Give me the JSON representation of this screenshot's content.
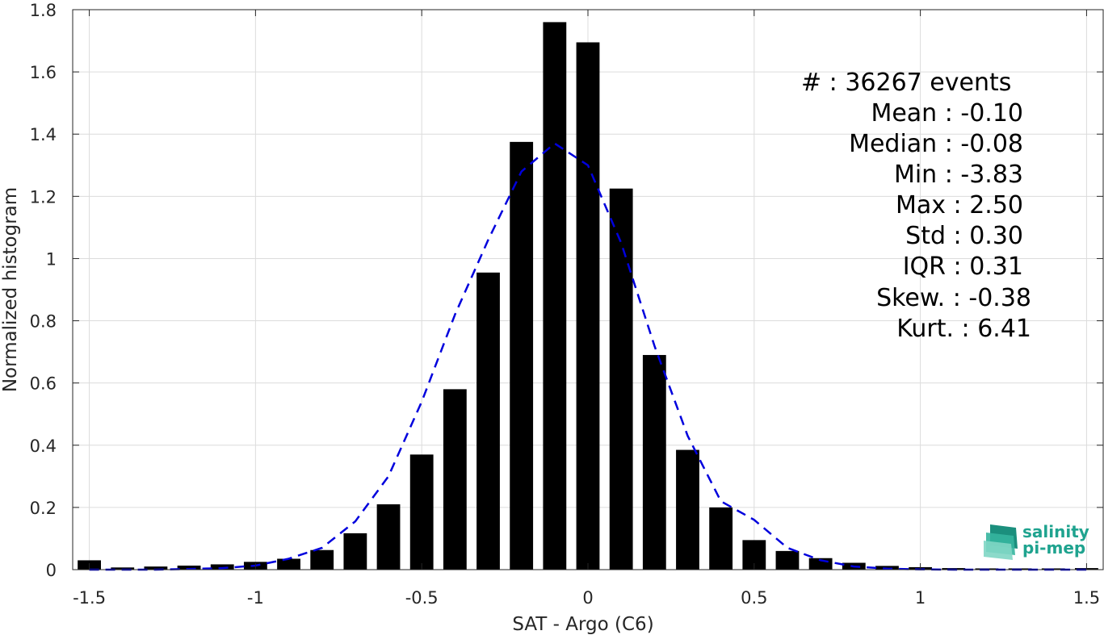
{
  "chart_data": {
    "type": "bar",
    "title": "",
    "xlabel": "SAT - Argo (C6)",
    "ylabel": "Normalized histogram",
    "xlim": [
      -1.55,
      1.55
    ],
    "ylim": [
      0,
      1.8
    ],
    "grid": true,
    "x_ticks": [
      -1.5,
      -1,
      -0.5,
      0,
      0.5,
      1,
      1.5
    ],
    "x_tick_labels": [
      "-1.5",
      "-1",
      "-0.5",
      "0",
      "0.5",
      "1",
      "1.5"
    ],
    "y_ticks": [
      0,
      0.2,
      0.4,
      0.6,
      0.8,
      1,
      1.2,
      1.4,
      1.6,
      1.8
    ],
    "y_tick_labels": [
      "0",
      "0.2",
      "0.4",
      "0.6",
      "0.8",
      "1",
      "1.2",
      "1.4",
      "1.6",
      "1.8"
    ],
    "bars": {
      "color": "#000000",
      "bin_width": 0.1,
      "x": [
        -1.5,
        -1.4,
        -1.3,
        -1.2,
        -1.1,
        -1.0,
        -0.9,
        -0.8,
        -0.7,
        -0.6,
        -0.5,
        -0.4,
        -0.3,
        -0.2,
        -0.1,
        0.0,
        0.1,
        0.2,
        0.3,
        0.4,
        0.5,
        0.6,
        0.7,
        0.8,
        0.9,
        1.0,
        1.1,
        1.2,
        1.3,
        1.4,
        1.5
      ],
      "values": [
        0.03,
        0.007,
        0.01,
        0.013,
        0.017,
        0.025,
        0.035,
        0.063,
        0.117,
        0.21,
        0.37,
        0.58,
        0.955,
        1.375,
        1.76,
        1.695,
        1.225,
        0.69,
        0.385,
        0.2,
        0.095,
        0.06,
        0.037,
        0.022,
        0.012,
        0.008,
        0.005,
        0.004,
        0.004,
        0.004,
        0.005
      ]
    },
    "fit_curve": {
      "color": "#0000dd",
      "style": "dashed",
      "x": [
        -1.5,
        -1.4,
        -1.3,
        -1.2,
        -1.1,
        -1.0,
        -0.9,
        -0.8,
        -0.7,
        -0.6,
        -0.5,
        -0.4,
        -0.3,
        -0.2,
        -0.1,
        0.0,
        0.1,
        0.2,
        0.3,
        0.4,
        0.5,
        0.6,
        0.7,
        0.8,
        0.9,
        1.0,
        1.1,
        1.2,
        1.3,
        1.4,
        1.5
      ],
      "values": [
        0.0,
        0.0,
        0.0,
        0.002,
        0.005,
        0.013,
        0.035,
        0.07,
        0.155,
        0.3,
        0.54,
        0.82,
        1.06,
        1.28,
        1.37,
        1.3,
        1.05,
        0.72,
        0.43,
        0.22,
        0.16,
        0.07,
        0.03,
        0.01,
        0.003,
        0.001,
        0.0,
        0.0,
        0.0,
        0.0,
        0.0
      ]
    }
  },
  "stats": {
    "count_line": "#  : 36267 events",
    "mean_line": "Mean : -0.10",
    "median_line": "Median : -0.08",
    "min_line": "Min : -3.83",
    "max_line": "Max : 2.50",
    "std_line": "Std : 0.30",
    "iqr_line": "IQR : 0.31",
    "skew_line": "Skew. : -0.38",
    "kurt_line": "Kurt. : 6.41"
  },
  "logo": {
    "line1": "salinity",
    "line2": "pi-mep",
    "color": "#1fa38f"
  }
}
